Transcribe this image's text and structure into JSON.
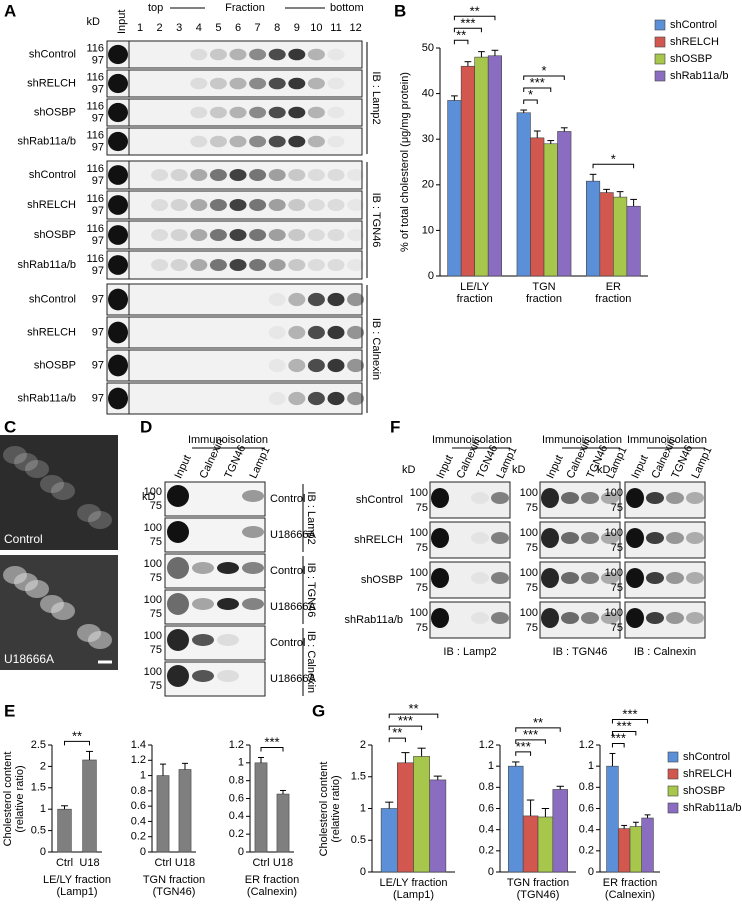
{
  "figure": {
    "panel_labels": [
      "A",
      "B",
      "C",
      "D",
      "E",
      "F",
      "G"
    ],
    "A": {
      "kd": "kD",
      "input": "Input",
      "top": "top",
      "fraction": "Fraction",
      "bottom": "bottom",
      "fractions": [
        "1",
        "2",
        "3",
        "4",
        "5",
        "6",
        "7",
        "8",
        "9",
        "10",
        "11",
        "12"
      ],
      "groups": [
        {
          "ib": "IB : Lamp2",
          "markers": [
            "116",
            "97"
          ],
          "rows": [
            "shControl",
            "shRELCH",
            "shOSBP",
            "shRab11a/b"
          ]
        },
        {
          "ib": "IB : TGN46",
          "markers": [
            "116",
            "97"
          ],
          "rows": [
            "shControl",
            "shRELCH",
            "shOSBP",
            "shRab11a/b"
          ]
        },
        {
          "ib": "IB : Calnexin",
          "markers": [
            "97"
          ],
          "rows": [
            "shControl",
            "shRELCH",
            "shOSBP",
            "shRab11a/b"
          ]
        }
      ]
    },
    "C": {
      "images": [
        "Control",
        "U18666A"
      ]
    },
    "D": {
      "header": "Immunoisolation",
      "kd": "kD",
      "lanes": [
        "Input",
        "Calnexin",
        "TGN46",
        "Lamp1"
      ],
      "markers": [
        "100",
        "75"
      ],
      "groups": [
        {
          "ib": "IB : Lamp2",
          "rows": [
            "Control",
            "U18666A"
          ]
        },
        {
          "ib": "IB : TGN46",
          "rows": [
            "Control",
            "U18666A"
          ]
        },
        {
          "ib": "IB : Calnexin",
          "rows": [
            "Control",
            "U18666A"
          ]
        }
      ]
    },
    "F": {
      "rows": [
        "shControl",
        "shRELCH",
        "shOSBP",
        "shRab11a/b"
      ],
      "markers": [
        "100",
        "75"
      ],
      "blots": [
        {
          "header": "Immunoisolation",
          "kd": "kD",
          "lanes": [
            "Input",
            "Calnexin",
            "TGN46",
            "Lamp1"
          ],
          "ib": "IB : Lamp2"
        },
        {
          "header": "Immunoisolation",
          "kd": "kD",
          "lanes": [
            "Input",
            "Calnexin",
            "TGN46",
            "Lamp1"
          ],
          "ib": "IB : TGN46"
        },
        {
          "header": "Immunoisolation",
          "kd": "kD",
          "lanes": [
            "Input",
            "Calnexin",
            "TGN46",
            "Lamp1"
          ],
          "ib": "IB : Calnexin"
        }
      ]
    }
  },
  "chart_data": [
    {
      "type": "bar",
      "ylabel": "% of total cholesterol (μg/mg protein)",
      "categories": [
        "LE/LY fraction",
        "TGN fraction",
        "ER fraction"
      ],
      "series": [
        {
          "name": "shControl",
          "color": "#5b8fd8",
          "values": [
            38.5,
            35.8,
            20.8
          ],
          "errors": [
            1,
            0.6,
            1.5
          ]
        },
        {
          "name": "shRELCH",
          "color": "#d2574f",
          "values": [
            46,
            30.3,
            18.3
          ],
          "errors": [
            1,
            1.5,
            0.7
          ]
        },
        {
          "name": "shOSBP",
          "color": "#a6c64c",
          "values": [
            48,
            29,
            17.3
          ],
          "errors": [
            1.2,
            0.7,
            1.2
          ]
        },
        {
          "name": "shRab11a/b",
          "color": "#8a6cc0",
          "values": [
            48.3,
            31.7,
            15.3
          ],
          "errors": [
            1.2,
            0.8,
            1.5
          ]
        }
      ],
      "ylim": [
        0,
        50
      ],
      "yticks": [
        0,
        10,
        20,
        30,
        40,
        50
      ],
      "legend": "right",
      "annotations": [
        {
          "text": "**",
          "category": "LE/LY fraction",
          "between": [
            "shControl",
            "shRELCH"
          ]
        },
        {
          "text": "***",
          "category": "LE/LY fraction",
          "between": [
            "shControl",
            "shOSBP"
          ]
        },
        {
          "text": "**",
          "category": "LE/LY fraction",
          "between": [
            "shControl",
            "shRab11a/b"
          ]
        },
        {
          "text": "*",
          "category": "TGN fraction",
          "between": [
            "shControl",
            "shRELCH"
          ]
        },
        {
          "text": "***",
          "category": "TGN fraction",
          "between": [
            "shControl",
            "shOSBP"
          ]
        },
        {
          "text": "*",
          "category": "TGN fraction",
          "between": [
            "shControl",
            "shRab11a/b"
          ]
        },
        {
          "text": "*",
          "category": "ER fraction",
          "between": [
            "shControl",
            "shRab11a/b"
          ]
        }
      ]
    },
    {
      "type": "bar",
      "ylabel": "Cholesterol content (relative ratio)",
      "categories": [
        "Ctrl",
        "U18"
      ],
      "values": [
        1,
        2.15
      ],
      "errors": [
        0.08,
        0.2
      ],
      "color": "#7f7f7f",
      "xlabel": "LE/LY fraction (Lamp1)",
      "ylim": [
        0,
        2.5
      ],
      "yticks": [
        0,
        0.5,
        1,
        1.5,
        2,
        2.5
      ],
      "annotations": [
        {
          "text": "**",
          "between": [
            "Ctrl",
            "U18"
          ]
        }
      ]
    },
    {
      "type": "bar",
      "categories": [
        "Ctrl",
        "U18"
      ],
      "values": [
        1,
        1.08
      ],
      "errors": [
        0.15,
        0.08
      ],
      "color": "#7f7f7f",
      "xlabel": "TGN fraction (TGN46)",
      "ylim": [
        0,
        1.4
      ],
      "yticks": [
        0,
        0.2,
        0.4,
        0.6,
        0.8,
        1,
        1.2,
        1.4
      ]
    },
    {
      "type": "bar",
      "categories": [
        "Ctrl",
        "U18"
      ],
      "values": [
        1,
        0.65
      ],
      "errors": [
        0.06,
        0.04
      ],
      "color": "#7f7f7f",
      "xlabel": "ER fraction (Calnexin)",
      "ylim": [
        0,
        1.2
      ],
      "yticks": [
        0,
        0.2,
        0.4,
        0.6,
        0.8,
        1,
        1.2
      ],
      "annotations": [
        {
          "text": "***",
          "between": [
            "Ctrl",
            "U18"
          ]
        }
      ]
    },
    {
      "type": "bar",
      "ylabel": "Cholesterol content (relative ratio)",
      "categories": [
        "LE/LY fraction (Lamp1)"
      ],
      "series": [
        {
          "name": "shControl",
          "color": "#5b8fd8",
          "values": [
            1
          ],
          "errors": [
            0.1
          ]
        },
        {
          "name": "shRELCH",
          "color": "#d2574f",
          "values": [
            1.72
          ],
          "errors": [
            0.16
          ]
        },
        {
          "name": "shOSBP",
          "color": "#a6c64c",
          "values": [
            1.82
          ],
          "errors": [
            0.13
          ]
        },
        {
          "name": "shRab11a/b",
          "color": "#8a6cc0",
          "values": [
            1.45
          ],
          "errors": [
            0.06
          ]
        }
      ],
      "ylim": [
        0,
        2
      ],
      "yticks": [
        0,
        0.5,
        1,
        1.5,
        2
      ],
      "annotations": [
        {
          "text": "**",
          "between": [
            "shControl",
            "shRELCH"
          ]
        },
        {
          "text": "***",
          "between": [
            "shControl",
            "shOSBP"
          ]
        },
        {
          "text": "**",
          "between": [
            "shControl",
            "shRab11a/b"
          ]
        }
      ]
    },
    {
      "type": "bar",
      "categories": [
        "TGN fraction (TGN46)"
      ],
      "series": [
        {
          "name": "shControl",
          "color": "#5b8fd8",
          "values": [
            1
          ],
          "errors": [
            0.04
          ]
        },
        {
          "name": "shRELCH",
          "color": "#d2574f",
          "values": [
            0.53
          ],
          "errors": [
            0.15
          ]
        },
        {
          "name": "shOSBP",
          "color": "#a6c64c",
          "values": [
            0.52
          ],
          "errors": [
            0.08
          ]
        },
        {
          "name": "shRab11a/b",
          "color": "#8a6cc0",
          "values": [
            0.78
          ],
          "errors": [
            0.03
          ]
        }
      ],
      "ylim": [
        0,
        1.2
      ],
      "yticks": [
        0,
        0.2,
        0.4,
        0.6,
        0.8,
        1,
        1.2
      ],
      "annotations": [
        {
          "text": "***",
          "between": [
            "shControl",
            "shRELCH"
          ]
        },
        {
          "text": "***",
          "between": [
            "shControl",
            "shOSBP"
          ]
        },
        {
          "text": "**",
          "between": [
            "shControl",
            "shRab11a/b"
          ]
        }
      ]
    },
    {
      "type": "bar",
      "categories": [
        "ER fraction (Calnexin)"
      ],
      "series": [
        {
          "name": "shControl",
          "color": "#5b8fd8",
          "values": [
            1
          ],
          "errors": [
            0.12
          ]
        },
        {
          "name": "shRELCH",
          "color": "#d2574f",
          "values": [
            0.41
          ],
          "errors": [
            0.03
          ]
        },
        {
          "name": "shOSBP",
          "color": "#a6c64c",
          "values": [
            0.43
          ],
          "errors": [
            0.04
          ]
        },
        {
          "name": "shRab11a/b",
          "color": "#8a6cc0",
          "values": [
            0.51
          ],
          "errors": [
            0.03
          ]
        }
      ],
      "ylim": [
        0,
        1.2
      ],
      "yticks": [
        0,
        0.2,
        0.4,
        0.6,
        0.8,
        1,
        1.2
      ],
      "legend": "right",
      "annotations": [
        {
          "text": "***",
          "between": [
            "shControl",
            "shRELCH"
          ]
        },
        {
          "text": "***",
          "between": [
            "shControl",
            "shOSBP"
          ]
        },
        {
          "text": "***",
          "between": [
            "shControl",
            "shRab11a/b"
          ]
        }
      ]
    }
  ]
}
